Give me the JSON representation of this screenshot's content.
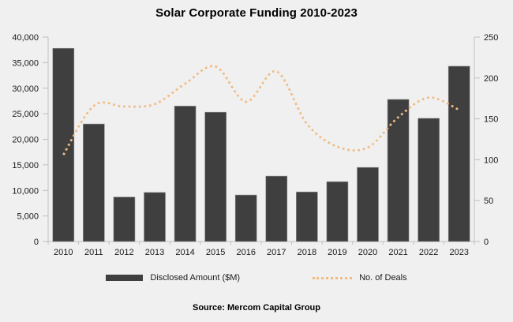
{
  "title": "Solar Corporate Funding 2010-2023",
  "source": "Source: Mercom Capital Group",
  "legend": {
    "bar_label": "Disclosed Amount ($M)",
    "line_label": "No. of Deals"
  },
  "colors": {
    "background": "#f0f0f0",
    "bar": "#3f3f3f",
    "bar_stroke": "#8c8c8c",
    "line": "#f0bc85",
    "axis": "#bfbfbf",
    "tick_text": "#1a1a1a"
  },
  "chart_data": {
    "type": "bar",
    "subtype": "combo-bar-and-dotted-line",
    "title": "Solar Corporate Funding 2010-2023",
    "categories": [
      "2010",
      "2011",
      "2012",
      "2013",
      "2014",
      "2015",
      "2016",
      "2017",
      "2018",
      "2019",
      "2020",
      "2021",
      "2022",
      "2023"
    ],
    "series": [
      {
        "name": "Disclosed Amount ($M)",
        "type": "bar",
        "axis": "left",
        "color": "#3f3f3f",
        "values": [
          37800,
          23000,
          8700,
          9600,
          26500,
          25300,
          9100,
          12800,
          9700,
          11700,
          14500,
          27800,
          24100,
          34300
        ]
      },
      {
        "name": "No. of Deals",
        "type": "line",
        "line_style": "dotted-smoothed",
        "axis": "right",
        "color": "#f0bc85",
        "values": [
          106,
          166,
          165,
          168,
          193,
          214,
          171,
          208,
          144,
          116,
          115,
          152,
          176,
          161
        ]
      }
    ],
    "left_axis": {
      "min": 0,
      "max": 40000,
      "step": 5000,
      "ticks": [
        "0",
        "5,000",
        "10,000",
        "15,000",
        "20,000",
        "25,000",
        "30,000",
        "35,000",
        "40,000"
      ]
    },
    "right_axis": {
      "min": 0,
      "max": 250,
      "step": 50,
      "ticks": [
        "0",
        "50",
        "100",
        "150",
        "200",
        "250"
      ]
    },
    "grid": false,
    "legend_position": "bottom",
    "source": "Source: Mercom Capital Group"
  }
}
